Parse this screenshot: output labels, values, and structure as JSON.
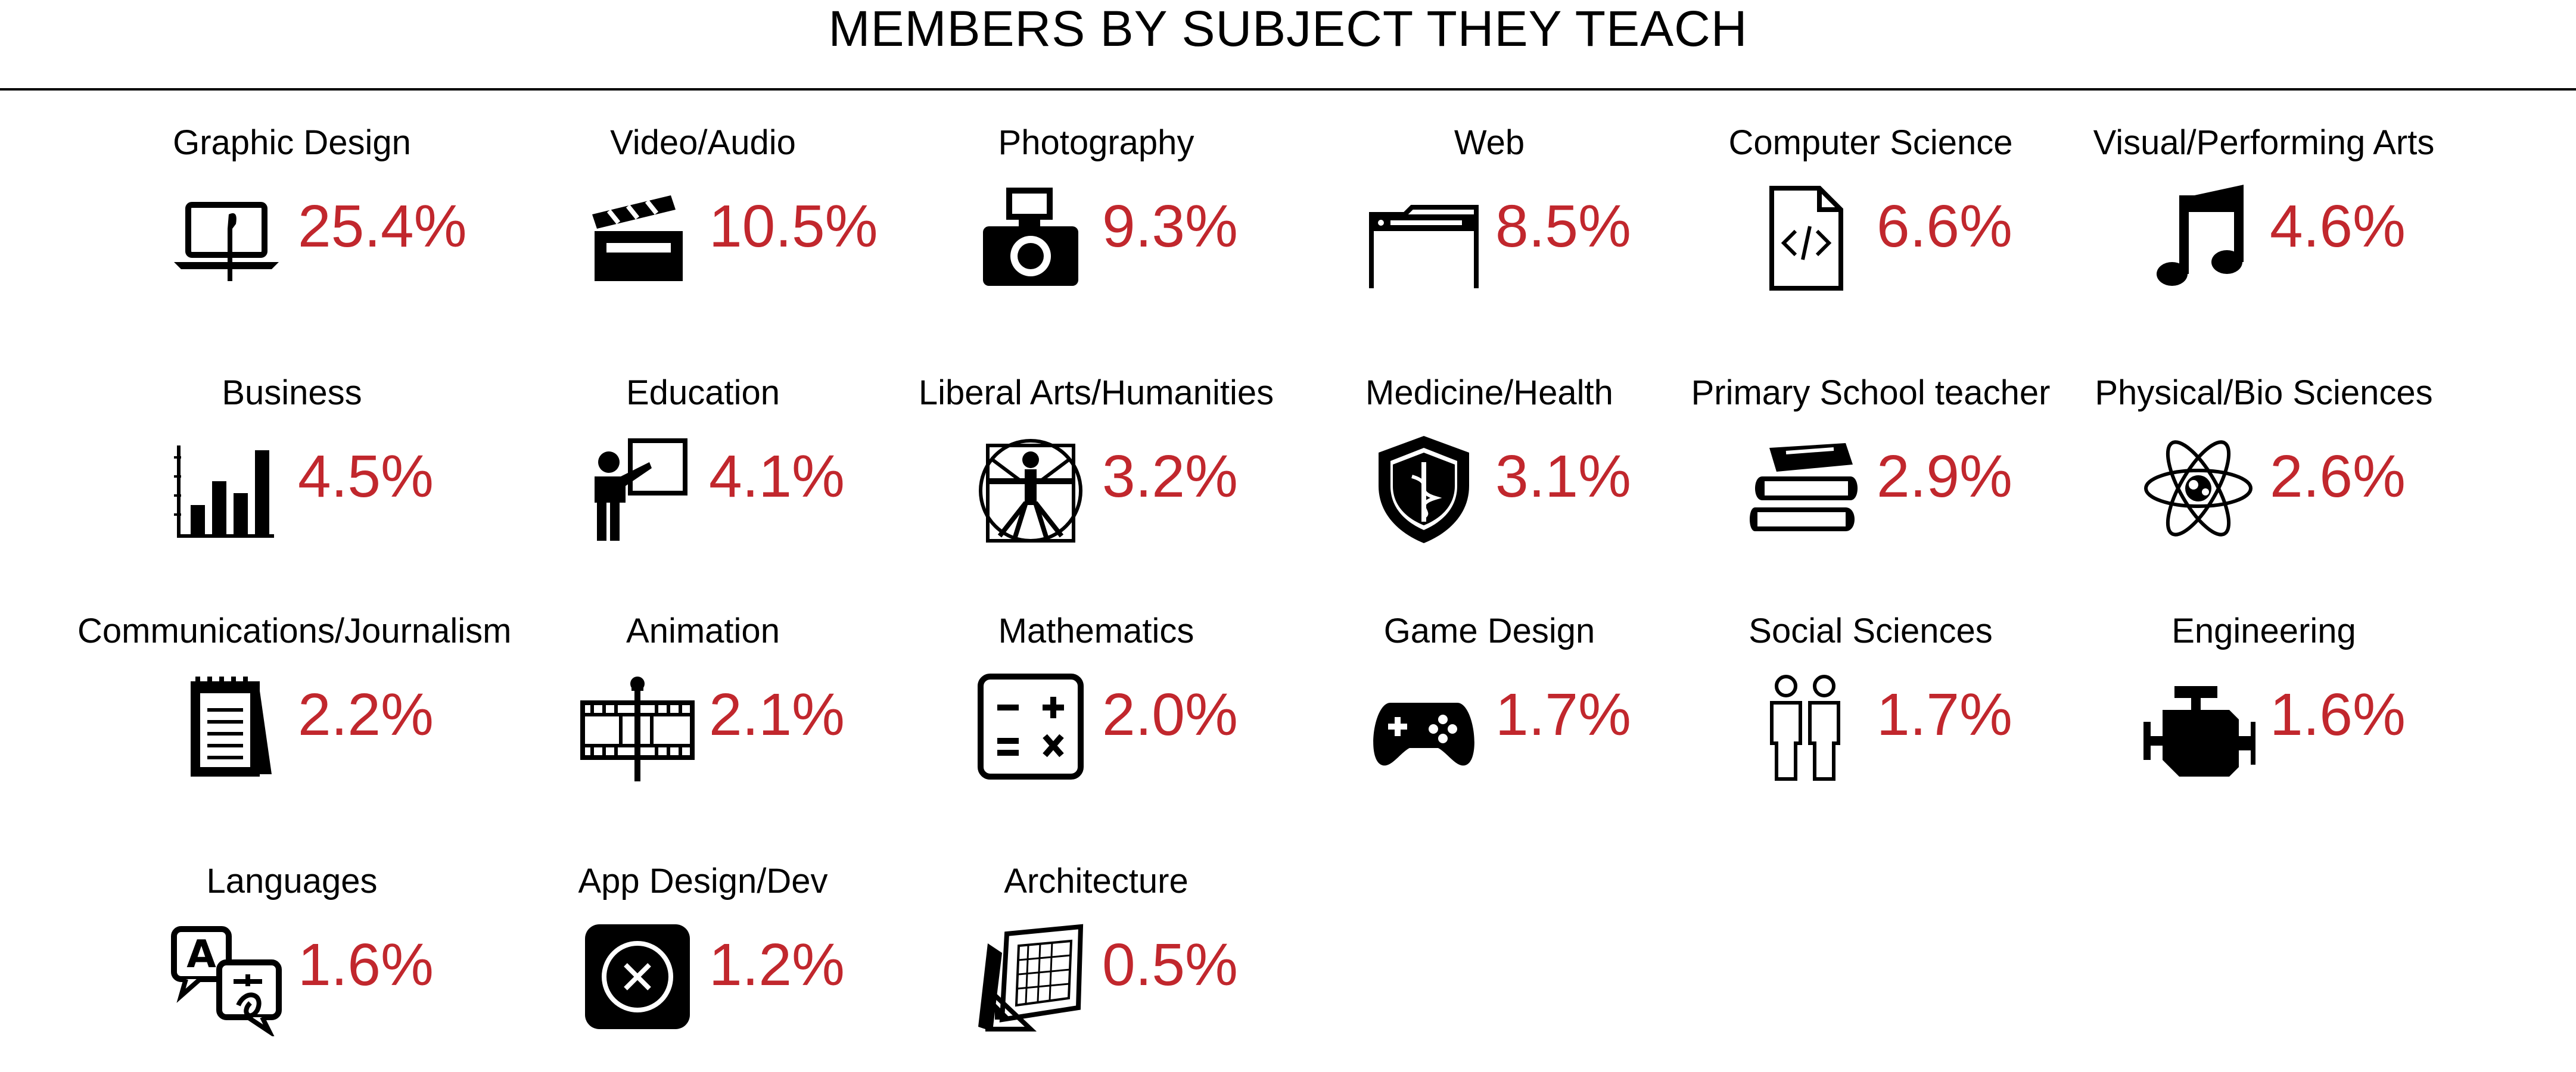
{
  "colors": {
    "percent": "#c1272d",
    "ink": "#000000"
  },
  "chart_data": {
    "type": "table",
    "title": "MEMBERS BY SUBJECT THEY TEACH",
    "unit": "%",
    "items": [
      {
        "label": "Graphic Design",
        "value": 25.4,
        "display": "25.4%",
        "icon": "laptop-brush-icon"
      },
      {
        "label": "Video/Audio",
        "value": 10.5,
        "display": "10.5%",
        "icon": "clapperboard-icon"
      },
      {
        "label": "Photography",
        "value": 9.3,
        "display": "9.3%",
        "icon": "camera-icon"
      },
      {
        "label": "Web",
        "value": 8.5,
        "display": "8.5%",
        "icon": "browser-window-icon"
      },
      {
        "label": "Computer Science",
        "value": 6.6,
        "display": "6.6%",
        "icon": "code-file-icon"
      },
      {
        "label": "Visual/Performing Arts",
        "value": 4.6,
        "display": "4.6%",
        "icon": "music-note-icon"
      },
      {
        "label": "Business",
        "value": 4.5,
        "display": "4.5%",
        "icon": "bar-chart-icon"
      },
      {
        "label": "Education",
        "value": 4.1,
        "display": "4.1%",
        "icon": "teacher-board-icon"
      },
      {
        "label": "Liberal Arts/Humanities",
        "value": 3.2,
        "display": "3.2%",
        "icon": "vitruvian-man-icon"
      },
      {
        "label": "Medicine/Health",
        "value": 3.1,
        "display": "3.1%",
        "icon": "medical-shield-icon"
      },
      {
        "label": "Primary School teacher",
        "value": 2.9,
        "display": "2.9%",
        "icon": "books-icon"
      },
      {
        "label": "Physical/Bio Sciences",
        "value": 2.6,
        "display": "2.6%",
        "icon": "atom-icon"
      },
      {
        "label": "Communications/Journalism",
        "value": 2.2,
        "display": "2.2%",
        "icon": "notepad-icon"
      },
      {
        "label": "Animation",
        "value": 2.1,
        "display": "2.1%",
        "icon": "film-strip-icon"
      },
      {
        "label": "Mathematics",
        "value": 2.0,
        "display": "2.0%",
        "icon": "calculator-icon"
      },
      {
        "label": "Game Design",
        "value": 1.7,
        "display": "1.7%",
        "icon": "gamepad-icon"
      },
      {
        "label": "Social Sciences",
        "value": 1.7,
        "display": "1.7%",
        "icon": "people-icon"
      },
      {
        "label": "Engineering",
        "value": 1.6,
        "display": "1.6%",
        "icon": "engine-icon"
      },
      {
        "label": "Languages",
        "value": 1.6,
        "display": "1.6%",
        "icon": "translate-icon"
      },
      {
        "label": "App Design/Dev",
        "value": 1.2,
        "display": "1.2%",
        "icon": "app-icon"
      },
      {
        "label": "Architecture",
        "value": 0.5,
        "display": "0.5%",
        "icon": "blueprint-icon"
      }
    ]
  }
}
